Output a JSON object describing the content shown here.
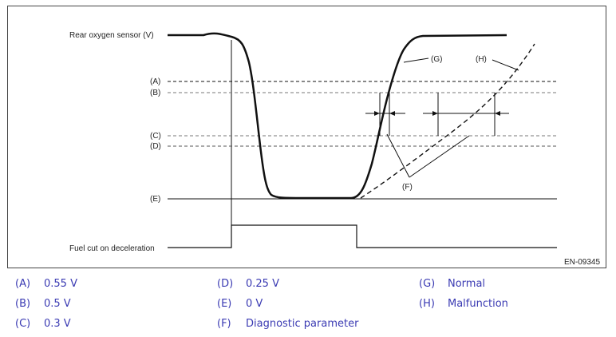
{
  "diagram": {
    "signal_label": "Rear oxygen sensor (V)",
    "fuel_cut_label": "Fuel cut on deceleration",
    "level_labels": {
      "A": "(A)",
      "B": "(B)",
      "C": "(C)",
      "D": "(D)",
      "E": "(E)"
    },
    "curve_labels": {
      "G": "(G)",
      "H": "(H)",
      "F": "(F)"
    },
    "figure_id": "EN-09345"
  },
  "legend": [
    {
      "key": "(A)",
      "text": "0.55 V"
    },
    {
      "key": "(B)",
      "text": "0.5 V"
    },
    {
      "key": "(C)",
      "text": "0.3 V"
    },
    {
      "key": "(D)",
      "text": "0.25 V"
    },
    {
      "key": "(E)",
      "text": "0 V"
    },
    {
      "key": "(F)",
      "text": "Diagnostic parameter"
    },
    {
      "key": "(G)",
      "text": "Normal"
    },
    {
      "key": "(H)",
      "text": "Malfunction"
    }
  ],
  "colors": {
    "legend_text": "#3b3bb3",
    "line": "#111111",
    "dashed": "#555555"
  }
}
